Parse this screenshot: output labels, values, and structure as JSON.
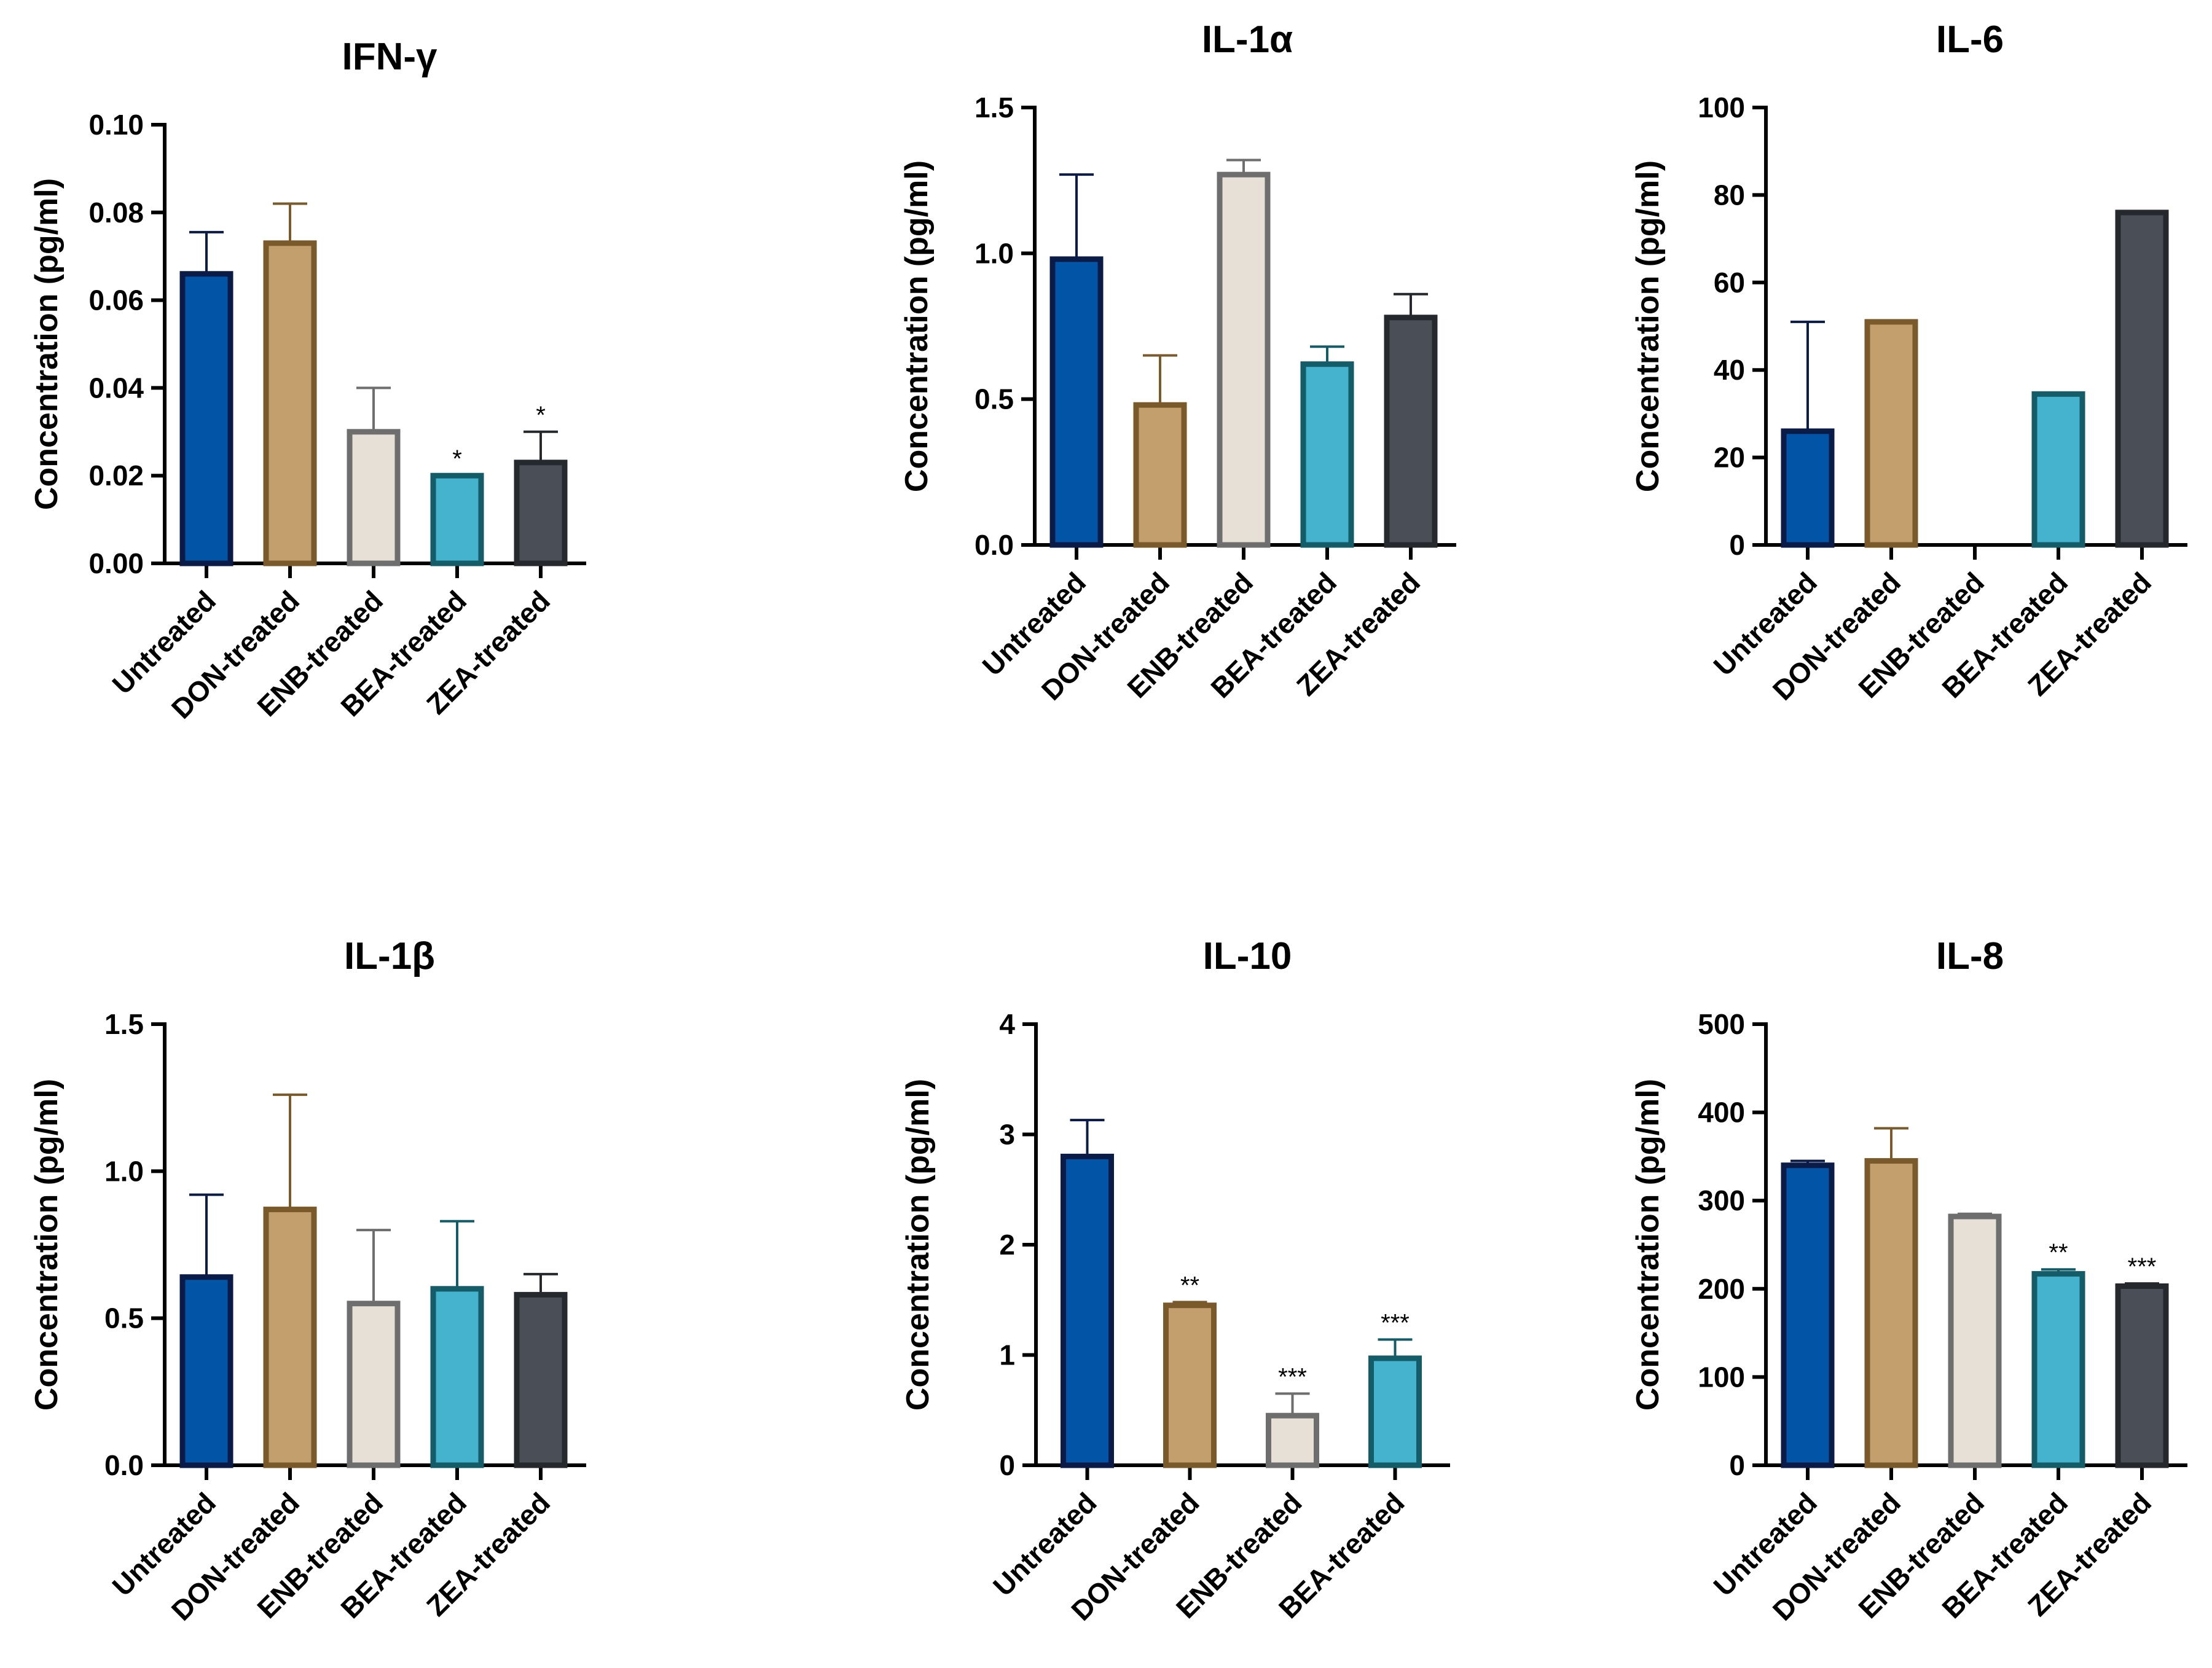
{
  "colors": {
    "Untreated": {
      "fill": "#0254A6",
      "stroke": "#0B1B48"
    },
    "DON-treated": {
      "fill": "#C29F6D",
      "stroke": "#7A5A2A"
    },
    "ENB-treated": {
      "fill": "#E7E0D6",
      "stroke": "#6E6E6E"
    },
    "BEA-treated": {
      "fill": "#45B2CE",
      "stroke": "#155C69"
    },
    "ZEA-treated": {
      "fill": "#4A4F57",
      "stroke": "#25282D"
    }
  },
  "chart_data": [
    {
      "type": "bar",
      "title": "IFN-γ",
      "ylabel": "Concentration (pg/ml)",
      "ylim": [
        0,
        0.1
      ],
      "yticks": [
        "0.00",
        "0.02",
        "0.04",
        "0.06",
        "0.08",
        "0.10"
      ],
      "categories": [
        "Untreated",
        "DON-treated",
        "ENB-treated",
        "BEA-treated",
        "ZEA-treated"
      ],
      "values": [
        0.066,
        0.073,
        0.03,
        0.02,
        0.023
      ],
      "errors": [
        0.0095,
        0.009,
        0.01,
        0,
        0.007
      ],
      "significance": [
        "",
        "",
        "",
        "*",
        "*"
      ]
    },
    {
      "type": "bar",
      "title": "IL-1α",
      "ylabel": "Concentration (pg/ml)",
      "ylim": [
        0,
        1.5
      ],
      "yticks": [
        "0.0",
        "0.5",
        "1.0",
        "1.5"
      ],
      "categories": [
        "Untreated",
        "DON-treated",
        "ENB-treated",
        "BEA-treated",
        "ZEA-treated"
      ],
      "values": [
        0.98,
        0.48,
        1.27,
        0.62,
        0.78
      ],
      "errors": [
        0.29,
        0.17,
        0.05,
        0.06,
        0.08
      ],
      "significance": [
        "",
        "",
        "",
        "",
        ""
      ]
    },
    {
      "type": "bar",
      "title": "IL-6",
      "ylabel": "Concentration (pg/ml)",
      "ylim": [
        0,
        100
      ],
      "yticks": [
        "0",
        "20",
        "40",
        "60",
        "80",
        "100"
      ],
      "categories": [
        "Untreated",
        "DON-treated",
        "ENB-treated",
        "BEA-treated",
        "ZEA-treated"
      ],
      "values": [
        26,
        51,
        0,
        34.5,
        76
      ],
      "errors": [
        25,
        0,
        0,
        0,
        0
      ],
      "significance": [
        "",
        "",
        "",
        "",
        ""
      ]
    },
    {
      "type": "bar",
      "title": "IL-1β",
      "ylabel": "Concentration (pg/ml)",
      "ylim": [
        0,
        1.5
      ],
      "yticks": [
        "0.0",
        "0.5",
        "1.0",
        "1.5"
      ],
      "categories": [
        "Untreated",
        "DON-treated",
        "ENB-treated",
        "BEA-treated",
        "ZEA-treated"
      ],
      "values": [
        0.64,
        0.87,
        0.55,
        0.6,
        0.58
      ],
      "errors": [
        0.28,
        0.39,
        0.25,
        0.23,
        0.07
      ],
      "significance": [
        "",
        "",
        "",
        "",
        ""
      ]
    },
    {
      "type": "bar",
      "title": "IL-10",
      "ylabel": "Concentration (pg/ml)",
      "ylim": [
        0,
        4
      ],
      "yticks": [
        "0",
        "1",
        "2",
        "3",
        "4"
      ],
      "categories": [
        "Untreated",
        "DON-treated",
        "ENB-treated",
        "BEA-treated"
      ],
      "values": [
        2.8,
        1.45,
        0.45,
        0.97
      ],
      "errors": [
        0.33,
        0.03,
        0.2,
        0.17
      ],
      "significance": [
        "",
        "**",
        "***",
        "***"
      ]
    },
    {
      "type": "bar",
      "title": "IL-8",
      "ylabel": "Concentration (pg/ml)",
      "ylim": [
        0,
        500
      ],
      "yticks": [
        "0",
        "100",
        "200",
        "300",
        "400",
        "500"
      ],
      "categories": [
        "Untreated",
        "DON-treated",
        "ENB-treated",
        "BEA-treated",
        "ZEA-treated"
      ],
      "values": [
        340,
        345,
        282,
        217,
        203
      ],
      "errors": [
        5,
        37,
        3,
        5,
        3
      ],
      "significance": [
        "",
        "",
        "",
        "**",
        "***"
      ]
    }
  ]
}
